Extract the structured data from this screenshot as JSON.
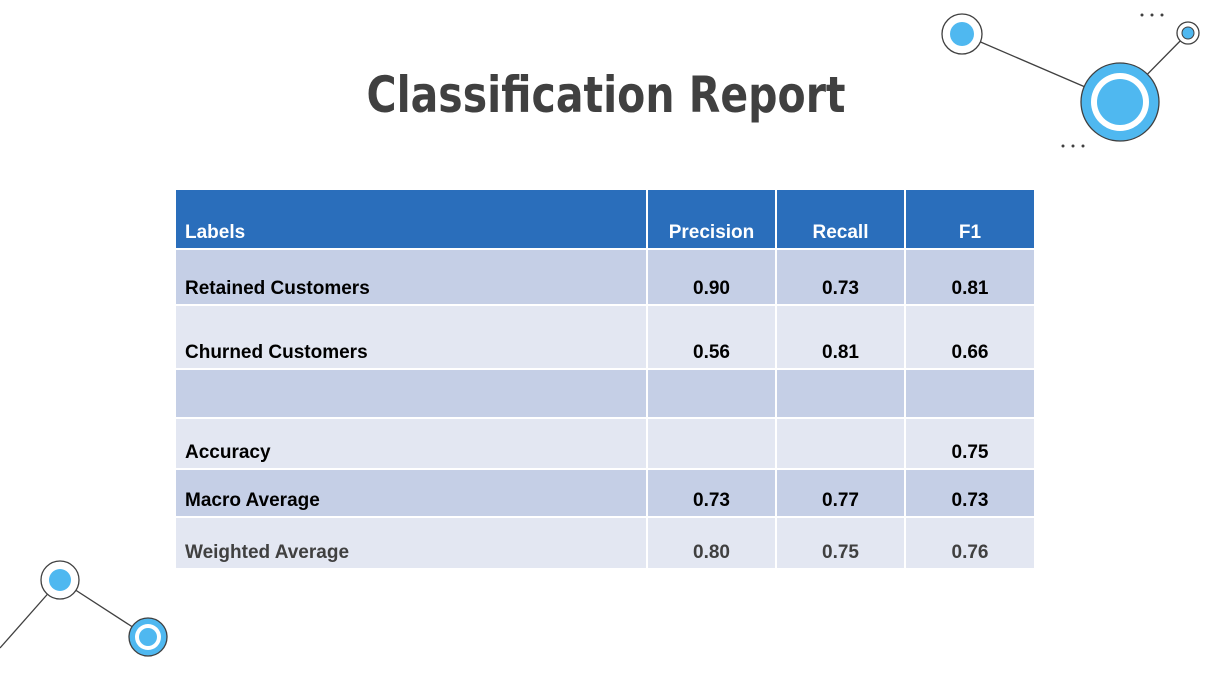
{
  "slide": {
    "title": "Classification Report"
  },
  "table": {
    "headers": [
      "Labels",
      "Precision",
      "Recall",
      "F1"
    ],
    "rows": [
      {
        "label": "Retained Customers",
        "precision": "0.90",
        "recall": "0.73",
        "f1": "0.81"
      },
      {
        "label": "Churned Customers",
        "precision": "0.56",
        "recall": "0.81",
        "f1": "0.66"
      },
      {
        "label": "",
        "precision": "",
        "recall": "",
        "f1": ""
      },
      {
        "label": "Accuracy",
        "precision": "",
        "recall": "",
        "f1": "0.75"
      },
      {
        "label": "Macro Average",
        "precision": "0.73",
        "recall": "0.77",
        "f1": "0.73"
      },
      {
        "label": "Weighted Average",
        "precision": "0.80",
        "recall": "0.75",
        "f1": "0.76"
      }
    ]
  },
  "colors": {
    "header_bg": "#2a6ebb",
    "row_dark": "#c5cfe6",
    "row_light": "#e3e7f2",
    "accent_circle": "#4fb8f0",
    "title_text": "#404040"
  },
  "decorations": {
    "top_right": "connected-node-circles-icon",
    "bottom_left": "connected-node-circles-icon",
    "ellipsis": "ellipsis-dots-icon"
  }
}
